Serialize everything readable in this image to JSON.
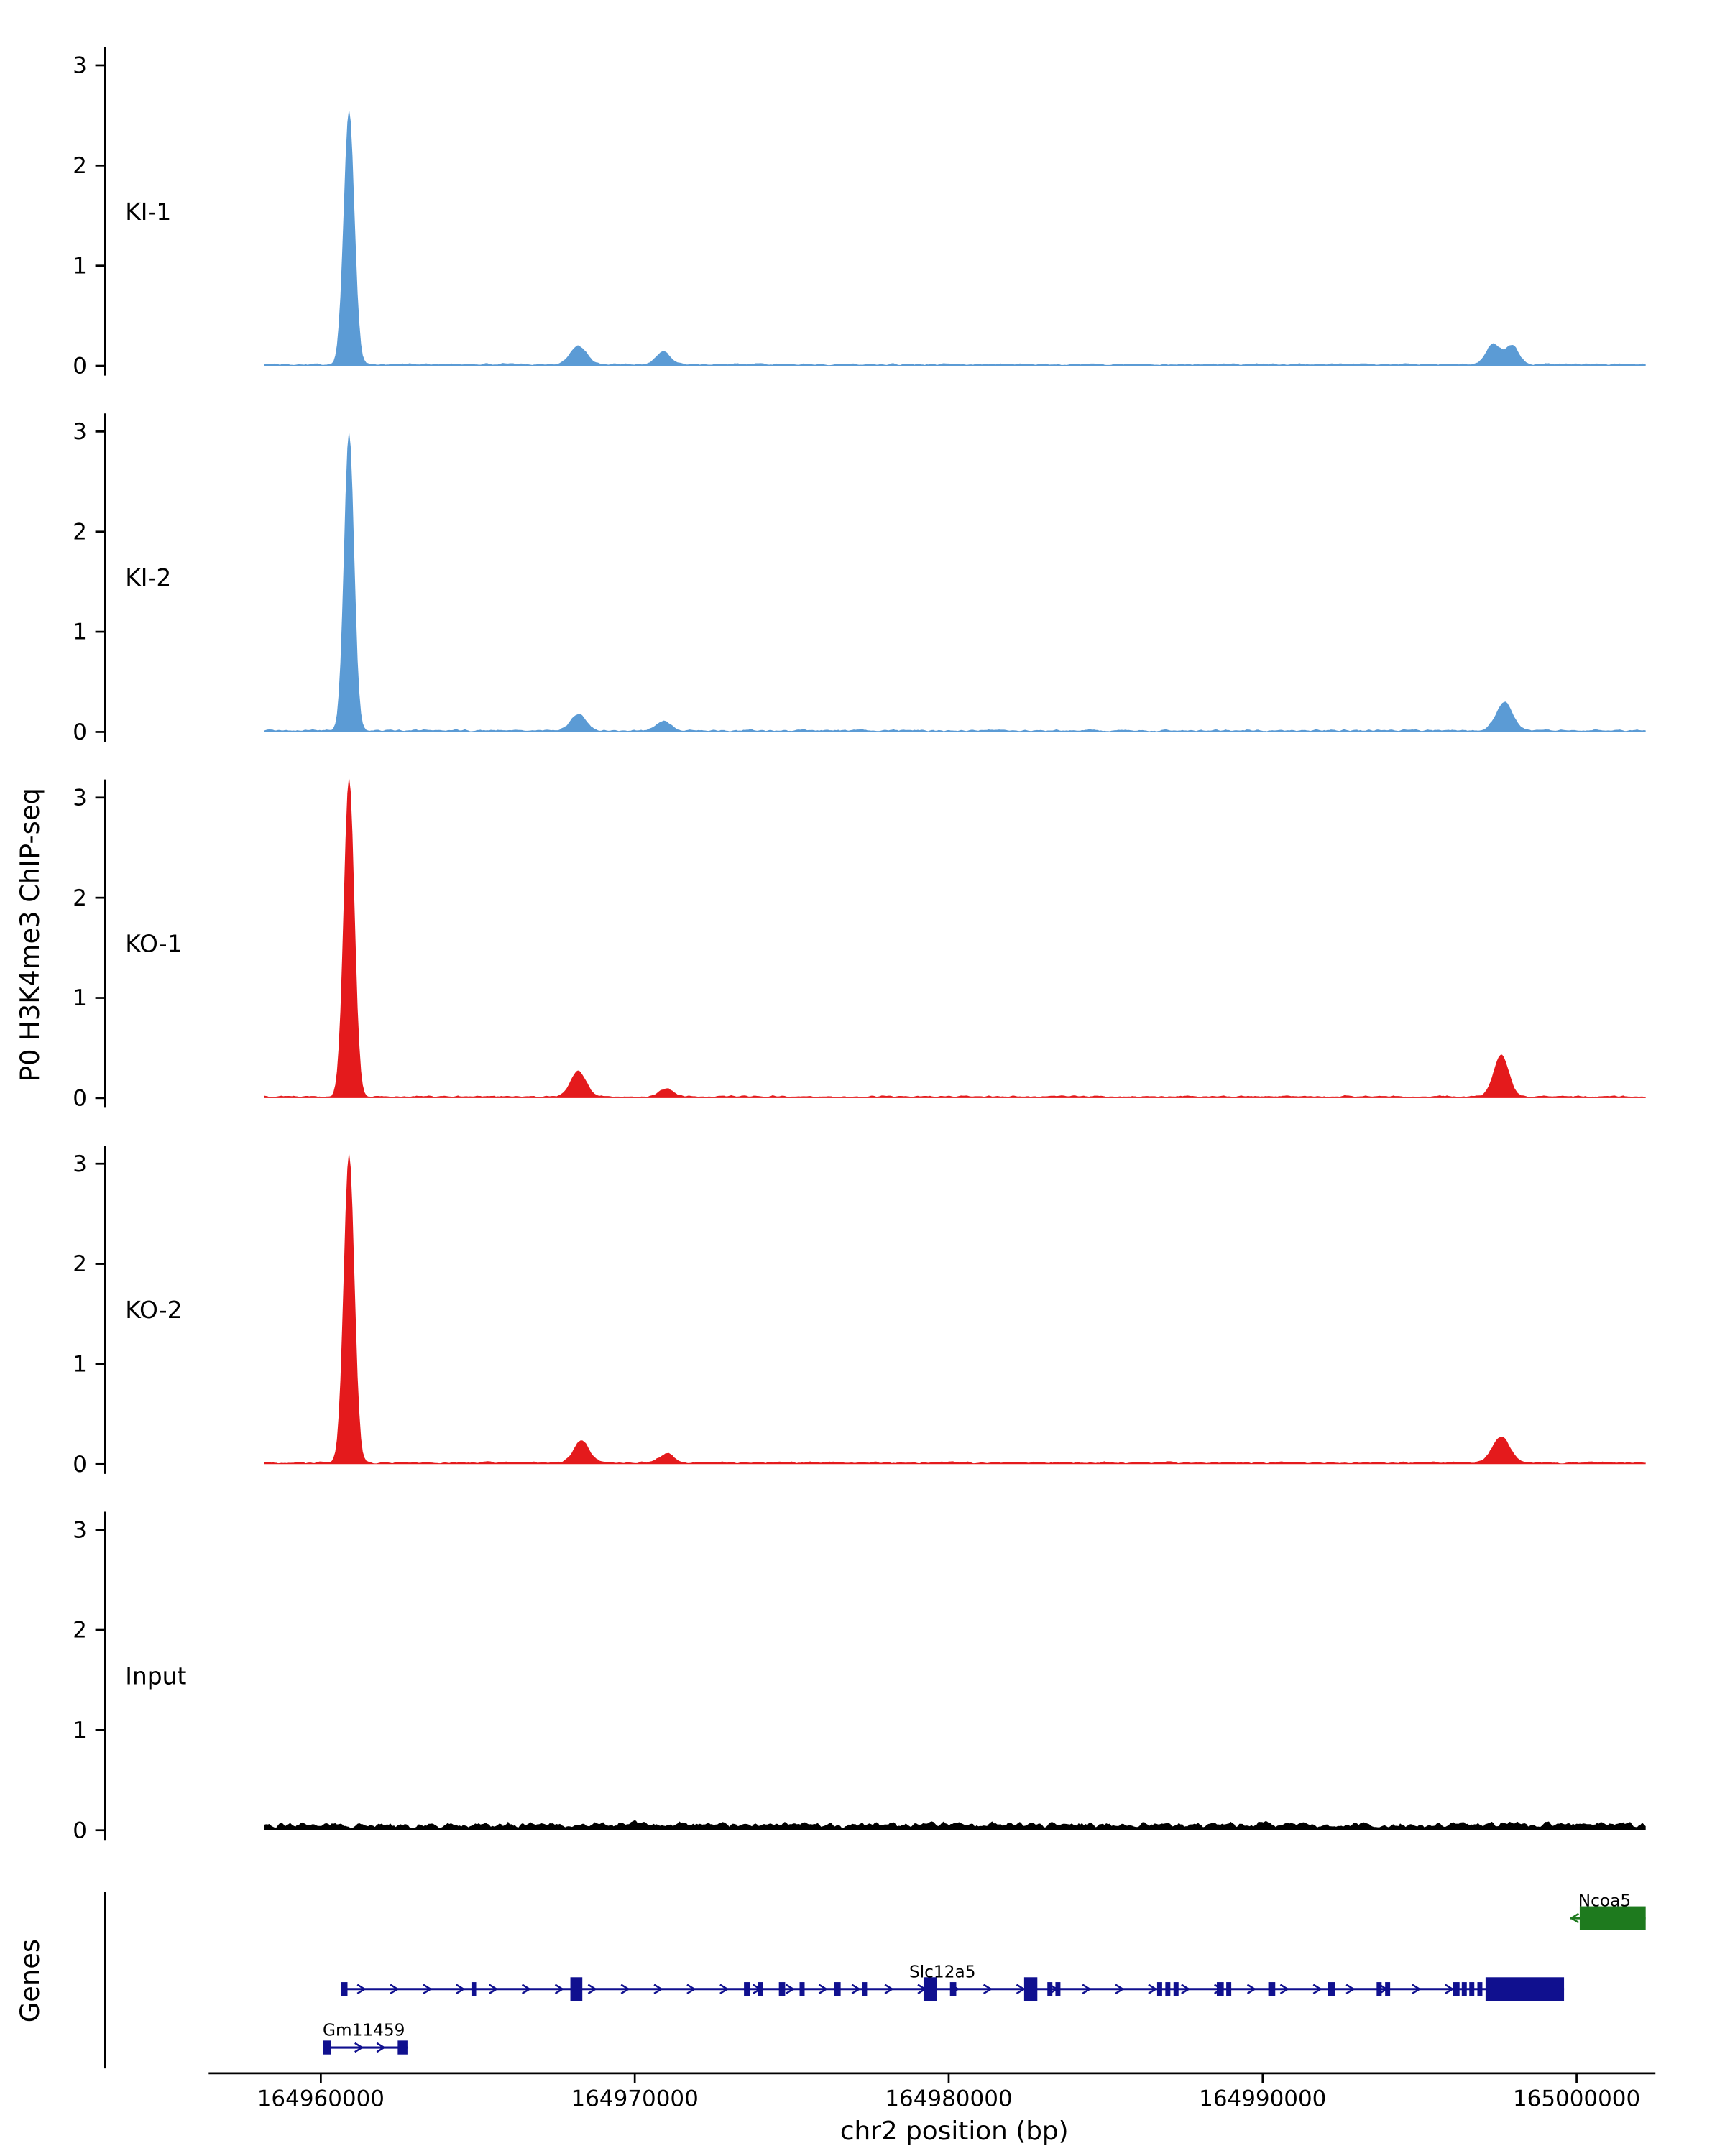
{
  "chart_data": {
    "type": "area",
    "title": "",
    "ylabel": "P0 H3K4me3 ChIP-seq",
    "xlabel": "chr2 position (bp)",
    "genes_label": "Genes",
    "chromosome": "chr2",
    "x_range": [
      164958200,
      165002200
    ],
    "x_ticks": [
      164960000,
      164970000,
      164980000,
      164990000,
      165000000
    ],
    "y_ticks": [
      0,
      1,
      2,
      3
    ],
    "y_max": 3.35,
    "grid": false,
    "legend_position": "none",
    "tracks": [
      {
        "name": "KI-1",
        "color": "#5B9BD5",
        "noise": 0.03,
        "peaks": [
          {
            "c": 164960900,
            "s": 170,
            "h": 2.55
          },
          {
            "c": 164968200,
            "s": 260,
            "h": 0.18
          },
          {
            "c": 164970900,
            "s": 220,
            "h": 0.13
          },
          {
            "c": 164997350,
            "s": 230,
            "h": 0.2
          },
          {
            "c": 164997950,
            "s": 200,
            "h": 0.19
          }
        ]
      },
      {
        "name": "KI-2",
        "color": "#5B9BD5",
        "noise": 0.03,
        "peaks": [
          {
            "c": 164960900,
            "s": 160,
            "h": 3.0
          },
          {
            "c": 164968200,
            "s": 240,
            "h": 0.17
          },
          {
            "c": 164970900,
            "s": 220,
            "h": 0.1
          },
          {
            "c": 164997700,
            "s": 260,
            "h": 0.28
          }
        ]
      },
      {
        "name": "KO-1",
        "color": "#E41A1C",
        "noise": 0.03,
        "peaks": [
          {
            "c": 164960900,
            "s": 170,
            "h": 3.2
          },
          {
            "c": 164968200,
            "s": 240,
            "h": 0.26
          },
          {
            "c": 164971000,
            "s": 220,
            "h": 0.08
          },
          {
            "c": 164997600,
            "s": 240,
            "h": 0.42
          }
        ]
      },
      {
        "name": "KO-2",
        "color": "#E41A1C",
        "noise": 0.03,
        "peaks": [
          {
            "c": 164960900,
            "s": 170,
            "h": 3.1
          },
          {
            "c": 164968300,
            "s": 250,
            "h": 0.22
          },
          {
            "c": 164971000,
            "s": 220,
            "h": 0.09
          },
          {
            "c": 164997600,
            "s": 280,
            "h": 0.26
          }
        ]
      },
      {
        "name": "Input",
        "color": "#000000",
        "noise": 0.1,
        "peaks": []
      }
    ],
    "genes": [
      {
        "name": "Ncoa5",
        "color": "#1E7A1E",
        "strand": "-",
        "row": 0,
        "start": 164999800,
        "end": 165002200,
        "label_bp": 165000050,
        "label_anchor": "start",
        "arrow_bps": [
          164999950
        ],
        "chevron_step": 0,
        "chevron_end_gap": 0,
        "exons": [
          [
            165000100,
            2100,
            1
          ]
        ]
      },
      {
        "name": "Slc12a5",
        "color": "#10108F",
        "strand": "+",
        "row": 1,
        "start": 164960650,
        "end": 164999600,
        "label_bp": 164979800,
        "label_anchor": "middle",
        "arrow_bps": [],
        "chevron_step": 1050,
        "chevron_end_gap": 2700,
        "exons": [
          [
            164960650,
            200,
            0
          ],
          [
            164964800,
            150,
            0
          ],
          [
            164967950,
            380,
            1
          ],
          [
            164973480,
            200,
            0
          ],
          [
            164973930,
            160,
            0
          ],
          [
            164974590,
            200,
            0
          ],
          [
            164975250,
            160,
            0
          ],
          [
            164976360,
            200,
            0
          ],
          [
            164977240,
            160,
            0
          ],
          [
            164979200,
            420,
            1
          ],
          [
            164980040,
            200,
            0
          ],
          [
            164982400,
            420,
            1
          ],
          [
            164983140,
            160,
            0
          ],
          [
            164983400,
            160,
            0
          ],
          [
            164986640,
            160,
            0
          ],
          [
            164986900,
            160,
            0
          ],
          [
            164987160,
            160,
            0
          ],
          [
            164988540,
            220,
            0
          ],
          [
            164988840,
            160,
            0
          ],
          [
            164990180,
            220,
            0
          ],
          [
            164992080,
            220,
            0
          ],
          [
            164993630,
            160,
            0
          ],
          [
            164993900,
            160,
            0
          ],
          [
            164996070,
            200,
            0
          ],
          [
            164996340,
            160,
            0
          ],
          [
            164996580,
            160,
            0
          ],
          [
            164996840,
            160,
            0
          ],
          [
            164997100,
            2500,
            1
          ]
        ]
      },
      {
        "name": "Gm11459",
        "color": "#10108F",
        "strand": "+",
        "row": 2,
        "start": 164960060,
        "end": 164962760,
        "label_bp": 164960060,
        "label_anchor": "start",
        "arrow_bps": [
          164961200,
          164961900
        ],
        "chevron_step": 0,
        "chevron_end_gap": 0,
        "exons": [
          [
            164960060,
            260,
            0
          ],
          [
            164962450,
            310,
            0
          ]
        ]
      }
    ]
  }
}
